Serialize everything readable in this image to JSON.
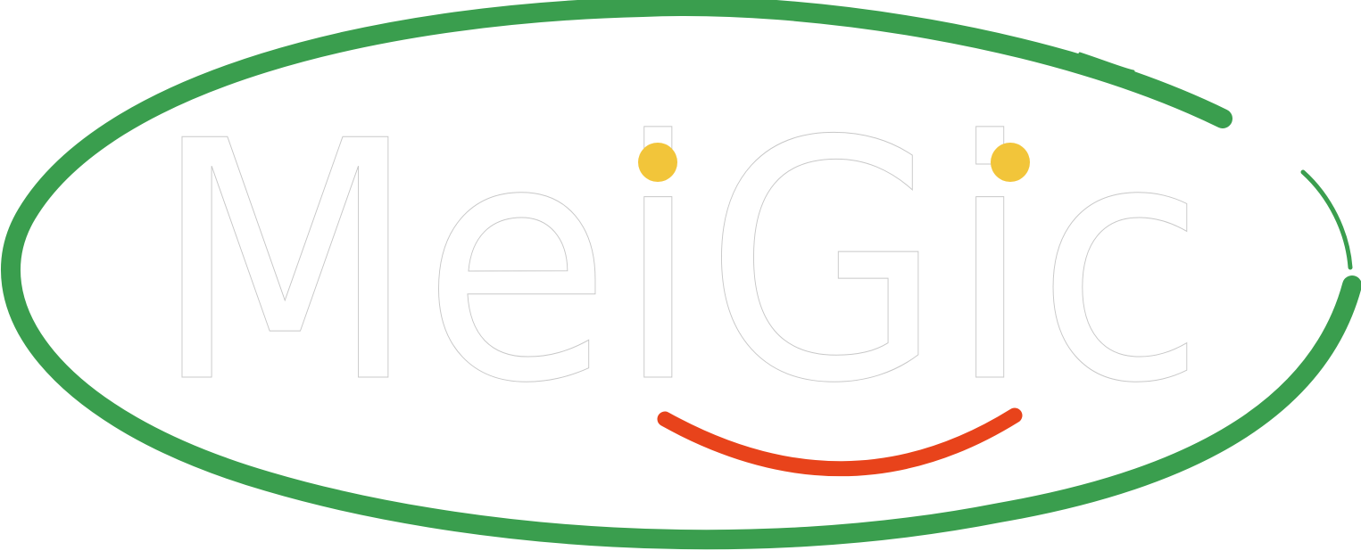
{
  "logo": {
    "wordmark": "MeiGic",
    "colors": {
      "ring": "#3a9e4e",
      "dots": "#f2c53a",
      "smile": "#e8431b",
      "letter_fill": "#ffffff",
      "letter_outline": "#c8c8c8"
    }
  }
}
